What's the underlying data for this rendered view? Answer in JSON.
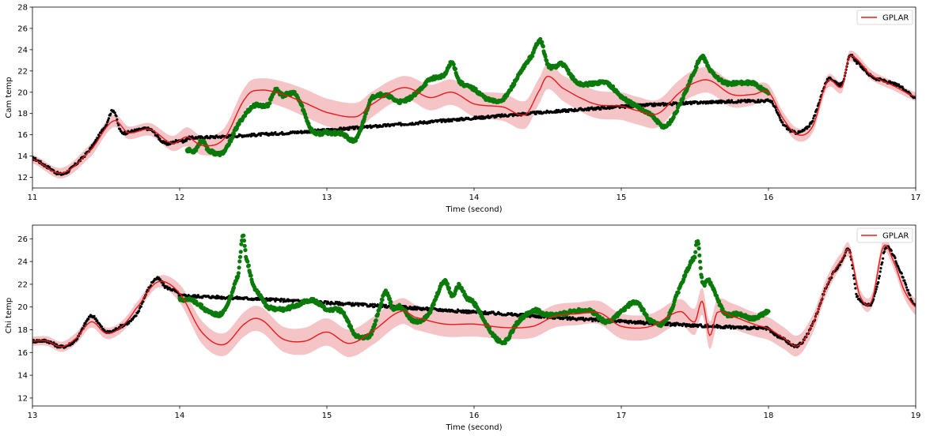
{
  "chart_data": [
    {
      "type": "line",
      "xlabel": "Time (second)",
      "ylabel": "Cam temp",
      "xlim": [
        11,
        17
      ],
      "ylim": [
        11,
        28
      ],
      "xticks": [
        11,
        12,
        13,
        14,
        15,
        16,
        17
      ],
      "yticks": [
        12,
        14,
        16,
        18,
        20,
        22,
        24,
        26,
        28
      ],
      "grid": false,
      "legend": {
        "placement": "top-right",
        "entries": [
          "GPLAR"
        ]
      },
      "colors": {
        "mean": "#e8191a",
        "band": "#f4c4c7",
        "observed": "#000000",
        "missing": "#0a7a0a"
      },
      "series": [
        {
          "name": "GPLAR",
          "kind": "line",
          "x": [
            11.0,
            11.2,
            11.4,
            11.55,
            11.65,
            11.8,
            11.95,
            12.05,
            12.15,
            12.3,
            12.45,
            12.55,
            12.7,
            12.85,
            13.0,
            13.2,
            13.3,
            13.45,
            13.55,
            13.7,
            13.85,
            14.0,
            14.2,
            14.35,
            14.45,
            14.5,
            14.6,
            14.75,
            14.85,
            15.0,
            15.1,
            15.25,
            15.4,
            15.5,
            15.6,
            15.75,
            15.9,
            16.0,
            16.1,
            16.2,
            16.3,
            16.4,
            16.5,
            16.55,
            16.7,
            16.85,
            17.0
          ],
          "y": [
            13.7,
            12.4,
            14.6,
            17.3,
            16.2,
            16.5,
            15.2,
            15.8,
            15.0,
            15.6,
            19.5,
            20.2,
            19.8,
            19.0,
            18.1,
            17.7,
            18.8,
            20.1,
            20.4,
            19.5,
            20.0,
            18.9,
            18.6,
            17.9,
            20.3,
            21.5,
            20.4,
            19.3,
            18.8,
            18.7,
            18.3,
            18.0,
            20.0,
            20.9,
            21.1,
            19.8,
            19.8,
            20.0,
            17.5,
            16.0,
            16.8,
            21.0,
            20.5,
            23.4,
            21.6,
            20.6,
            19.6
          ]
        },
        {
          "name": "",
          "kind": "band",
          "x": [
            11.0,
            11.4,
            11.55,
            11.8,
            11.95,
            12.05,
            12.15,
            12.3,
            12.45,
            12.55,
            12.7,
            12.85,
            13.0,
            13.2,
            13.3,
            13.45,
            13.55,
            13.7,
            13.85,
            14.0,
            14.2,
            14.35,
            14.45,
            14.5,
            14.6,
            14.75,
            14.85,
            15.0,
            15.1,
            15.25,
            15.4,
            15.5,
            15.6,
            15.75,
            15.9,
            16.0,
            16.2,
            16.4,
            16.55,
            17.0
          ],
          "half_width": [
            0.4,
            0.6,
            0.6,
            0.6,
            0.7,
            0.9,
            0.9,
            1.0,
            1.1,
            1.1,
            1.2,
            1.3,
            1.3,
            1.3,
            1.2,
            1.1,
            1.1,
            1.2,
            1.2,
            1.2,
            1.3,
            1.3,
            1.2,
            1.2,
            1.2,
            1.3,
            1.3,
            1.3,
            1.3,
            1.3,
            1.2,
            1.2,
            1.2,
            1.2,
            1.0,
            0.7,
            0.6,
            0.6,
            0.5,
            0.4
          ]
        },
        {
          "name": "",
          "kind": "observed",
          "x": [
            11.0,
            11.1,
            11.2,
            11.3,
            11.4,
            11.5,
            11.55,
            11.6,
            11.7,
            11.8,
            11.9,
            12.0,
            12.05,
            16.0,
            16.1,
            16.2,
            16.3,
            16.4,
            16.5,
            16.55,
            16.6,
            16.7,
            16.8,
            16.9,
            17.0
          ],
          "y": [
            13.8,
            13.0,
            12.3,
            13.3,
            14.8,
            16.9,
            18.3,
            16.3,
            16.4,
            16.5,
            15.2,
            15.5,
            15.7,
            19.2,
            17.0,
            16.2,
            17.4,
            21.1,
            20.8,
            23.3,
            22.8,
            21.5,
            21.0,
            20.5,
            19.5
          ]
        },
        {
          "name": "",
          "kind": "missing",
          "x": [
            12.05,
            12.1,
            12.15,
            12.2,
            12.3,
            12.4,
            12.5,
            12.6,
            12.65,
            12.7,
            12.75,
            12.8,
            12.9,
            13.0,
            13.1,
            13.2,
            13.3,
            13.4,
            13.5,
            13.6,
            13.7,
            13.8,
            13.85,
            13.9,
            14.0,
            14.1,
            14.2,
            14.3,
            14.4,
            14.45,
            14.5,
            14.55,
            14.6,
            14.7,
            14.8,
            14.9,
            15.0,
            15.1,
            15.2,
            15.3,
            15.4,
            15.5,
            15.55,
            15.6,
            15.7,
            15.8,
            15.9,
            16.0
          ],
          "y": [
            14.6,
            14.5,
            15.4,
            14.5,
            14.4,
            17.0,
            18.7,
            18.8,
            20.2,
            19.7,
            19.9,
            19.5,
            16.4,
            16.2,
            16.1,
            15.6,
            19.3,
            19.7,
            19.1,
            19.8,
            21.2,
            21.6,
            22.8,
            21.0,
            20.3,
            19.3,
            19.4,
            21.5,
            23.6,
            24.9,
            22.6,
            22.4,
            22.6,
            20.9,
            20.8,
            20.9,
            19.6,
            18.7,
            17.9,
            16.8,
            18.9,
            22.0,
            23.3,
            22.1,
            20.9,
            20.9,
            20.8,
            20.0
          ]
        }
      ]
    },
    {
      "type": "line",
      "xlabel": "Time (second)",
      "ylabel": "Chi temp",
      "xlim": [
        13,
        19
      ],
      "ylim": [
        11.3,
        27.2
      ],
      "xticks": [
        13,
        14,
        15,
        16,
        17,
        18,
        19
      ],
      "yticks": [
        12,
        14,
        16,
        18,
        20,
        22,
        24,
        26
      ],
      "grid": false,
      "legend": {
        "placement": "top-right",
        "entries": [
          "GPLAR"
        ]
      },
      "colors": {
        "mean": "#e8191a",
        "band": "#f4c4c7",
        "observed": "#000000",
        "missing": "#0a7a0a"
      },
      "series": [
        {
          "name": "GPLAR",
          "kind": "line",
          "x": [
            13.0,
            13.1,
            13.2,
            13.3,
            13.4,
            13.5,
            13.6,
            13.7,
            13.85,
            14.0,
            14.15,
            14.3,
            14.45,
            14.55,
            14.7,
            14.85,
            15.0,
            15.15,
            15.3,
            15.5,
            15.6,
            15.8,
            16.0,
            16.2,
            16.4,
            16.55,
            16.7,
            16.85,
            17.0,
            17.2,
            17.4,
            17.5,
            17.55,
            17.6,
            17.65,
            17.75,
            17.9,
            18.0,
            18.1,
            18.2,
            18.3,
            18.4,
            18.5,
            18.55,
            18.62,
            18.7,
            18.78,
            18.85,
            18.92,
            19.0
          ],
          "y": [
            17.0,
            17.0,
            16.5,
            17.3,
            18.7,
            17.7,
            18.2,
            19.8,
            22.2,
            21.2,
            17.8,
            16.7,
            18.6,
            18.9,
            17.2,
            17.0,
            17.8,
            16.8,
            17.8,
            19.6,
            19.1,
            18.5,
            18.5,
            18.2,
            18.3,
            19.2,
            19.4,
            19.5,
            18.3,
            18.3,
            19.6,
            18.7,
            20.5,
            17.5,
            19.5,
            19.2,
            18.5,
            18.1,
            17.3,
            16.6,
            18.5,
            22.0,
            24.2,
            24.9,
            21.0,
            20.5,
            25.3,
            24.0,
            21.5,
            20.0
          ]
        },
        {
          "name": "",
          "kind": "band",
          "x": [
            13.0,
            13.4,
            13.85,
            14.0,
            14.15,
            14.3,
            14.5,
            14.7,
            14.9,
            15.0,
            15.2,
            15.4,
            15.6,
            15.8,
            16.0,
            16.2,
            16.4,
            16.6,
            16.8,
            17.0,
            17.2,
            17.4,
            17.6,
            17.8,
            18.0,
            18.2,
            18.4,
            18.6,
            18.8,
            19.0
          ],
          "half_width": [
            0.4,
            0.5,
            0.5,
            0.8,
            1.0,
            1.0,
            1.1,
            1.1,
            1.2,
            1.2,
            1.2,
            1.2,
            1.1,
            1.1,
            1.1,
            1.0,
            1.0,
            1.0,
            1.0,
            1.1,
            1.1,
            1.1,
            1.2,
            1.1,
            1.0,
            0.9,
            0.7,
            0.6,
            0.6,
            0.7
          ]
        },
        {
          "name": "",
          "kind": "observed",
          "x": [
            13.0,
            13.1,
            13.2,
            13.3,
            13.4,
            13.5,
            13.6,
            13.7,
            13.8,
            13.85,
            13.9,
            14.0,
            18.0,
            18.1,
            18.2,
            18.3,
            18.4,
            18.5,
            18.55,
            18.6,
            18.7,
            18.75,
            18.8,
            18.9,
            19.0
          ],
          "y": [
            17.0,
            17.0,
            16.5,
            17.2,
            19.2,
            17.8,
            18.3,
            19.2,
            21.8,
            22.5,
            21.8,
            21.0,
            18.1,
            17.2,
            16.6,
            18.5,
            22.0,
            24.0,
            25.0,
            21.0,
            20.3,
            22.5,
            25.3,
            23.0,
            20.0
          ]
        },
        {
          "name": "",
          "kind": "missing",
          "x": [
            14.0,
            14.1,
            14.2,
            14.3,
            14.4,
            14.43,
            14.45,
            14.5,
            14.55,
            14.6,
            14.7,
            14.8,
            14.9,
            15.0,
            15.1,
            15.2,
            15.3,
            15.35,
            15.4,
            15.45,
            15.5,
            15.6,
            15.7,
            15.8,
            15.85,
            15.9,
            15.95,
            16.0,
            16.1,
            16.2,
            16.3,
            16.4,
            16.5,
            16.6,
            16.7,
            16.8,
            16.9,
            17.0,
            17.1,
            17.2,
            17.3,
            17.4,
            17.5,
            17.52,
            17.55,
            17.6,
            17.7,
            17.8,
            17.9,
            18.0
          ],
          "y": [
            20.7,
            20.5,
            19.6,
            19.6,
            22.9,
            26.3,
            24.5,
            22.0,
            21.0,
            20.0,
            19.8,
            20.2,
            20.6,
            19.8,
            19.6,
            17.5,
            17.6,
            19.6,
            21.3,
            19.9,
            20.0,
            18.7,
            19.6,
            22.3,
            21.0,
            21.9,
            20.8,
            20.3,
            18.1,
            16.9,
            18.7,
            19.7,
            19.3,
            19.4,
            19.7,
            19.6,
            18.7,
            19.6,
            20.4,
            18.8,
            18.7,
            21.8,
            24.5,
            25.7,
            22.2,
            22.2,
            19.5,
            19.4,
            19.0,
            19.6
          ]
        }
      ]
    }
  ]
}
